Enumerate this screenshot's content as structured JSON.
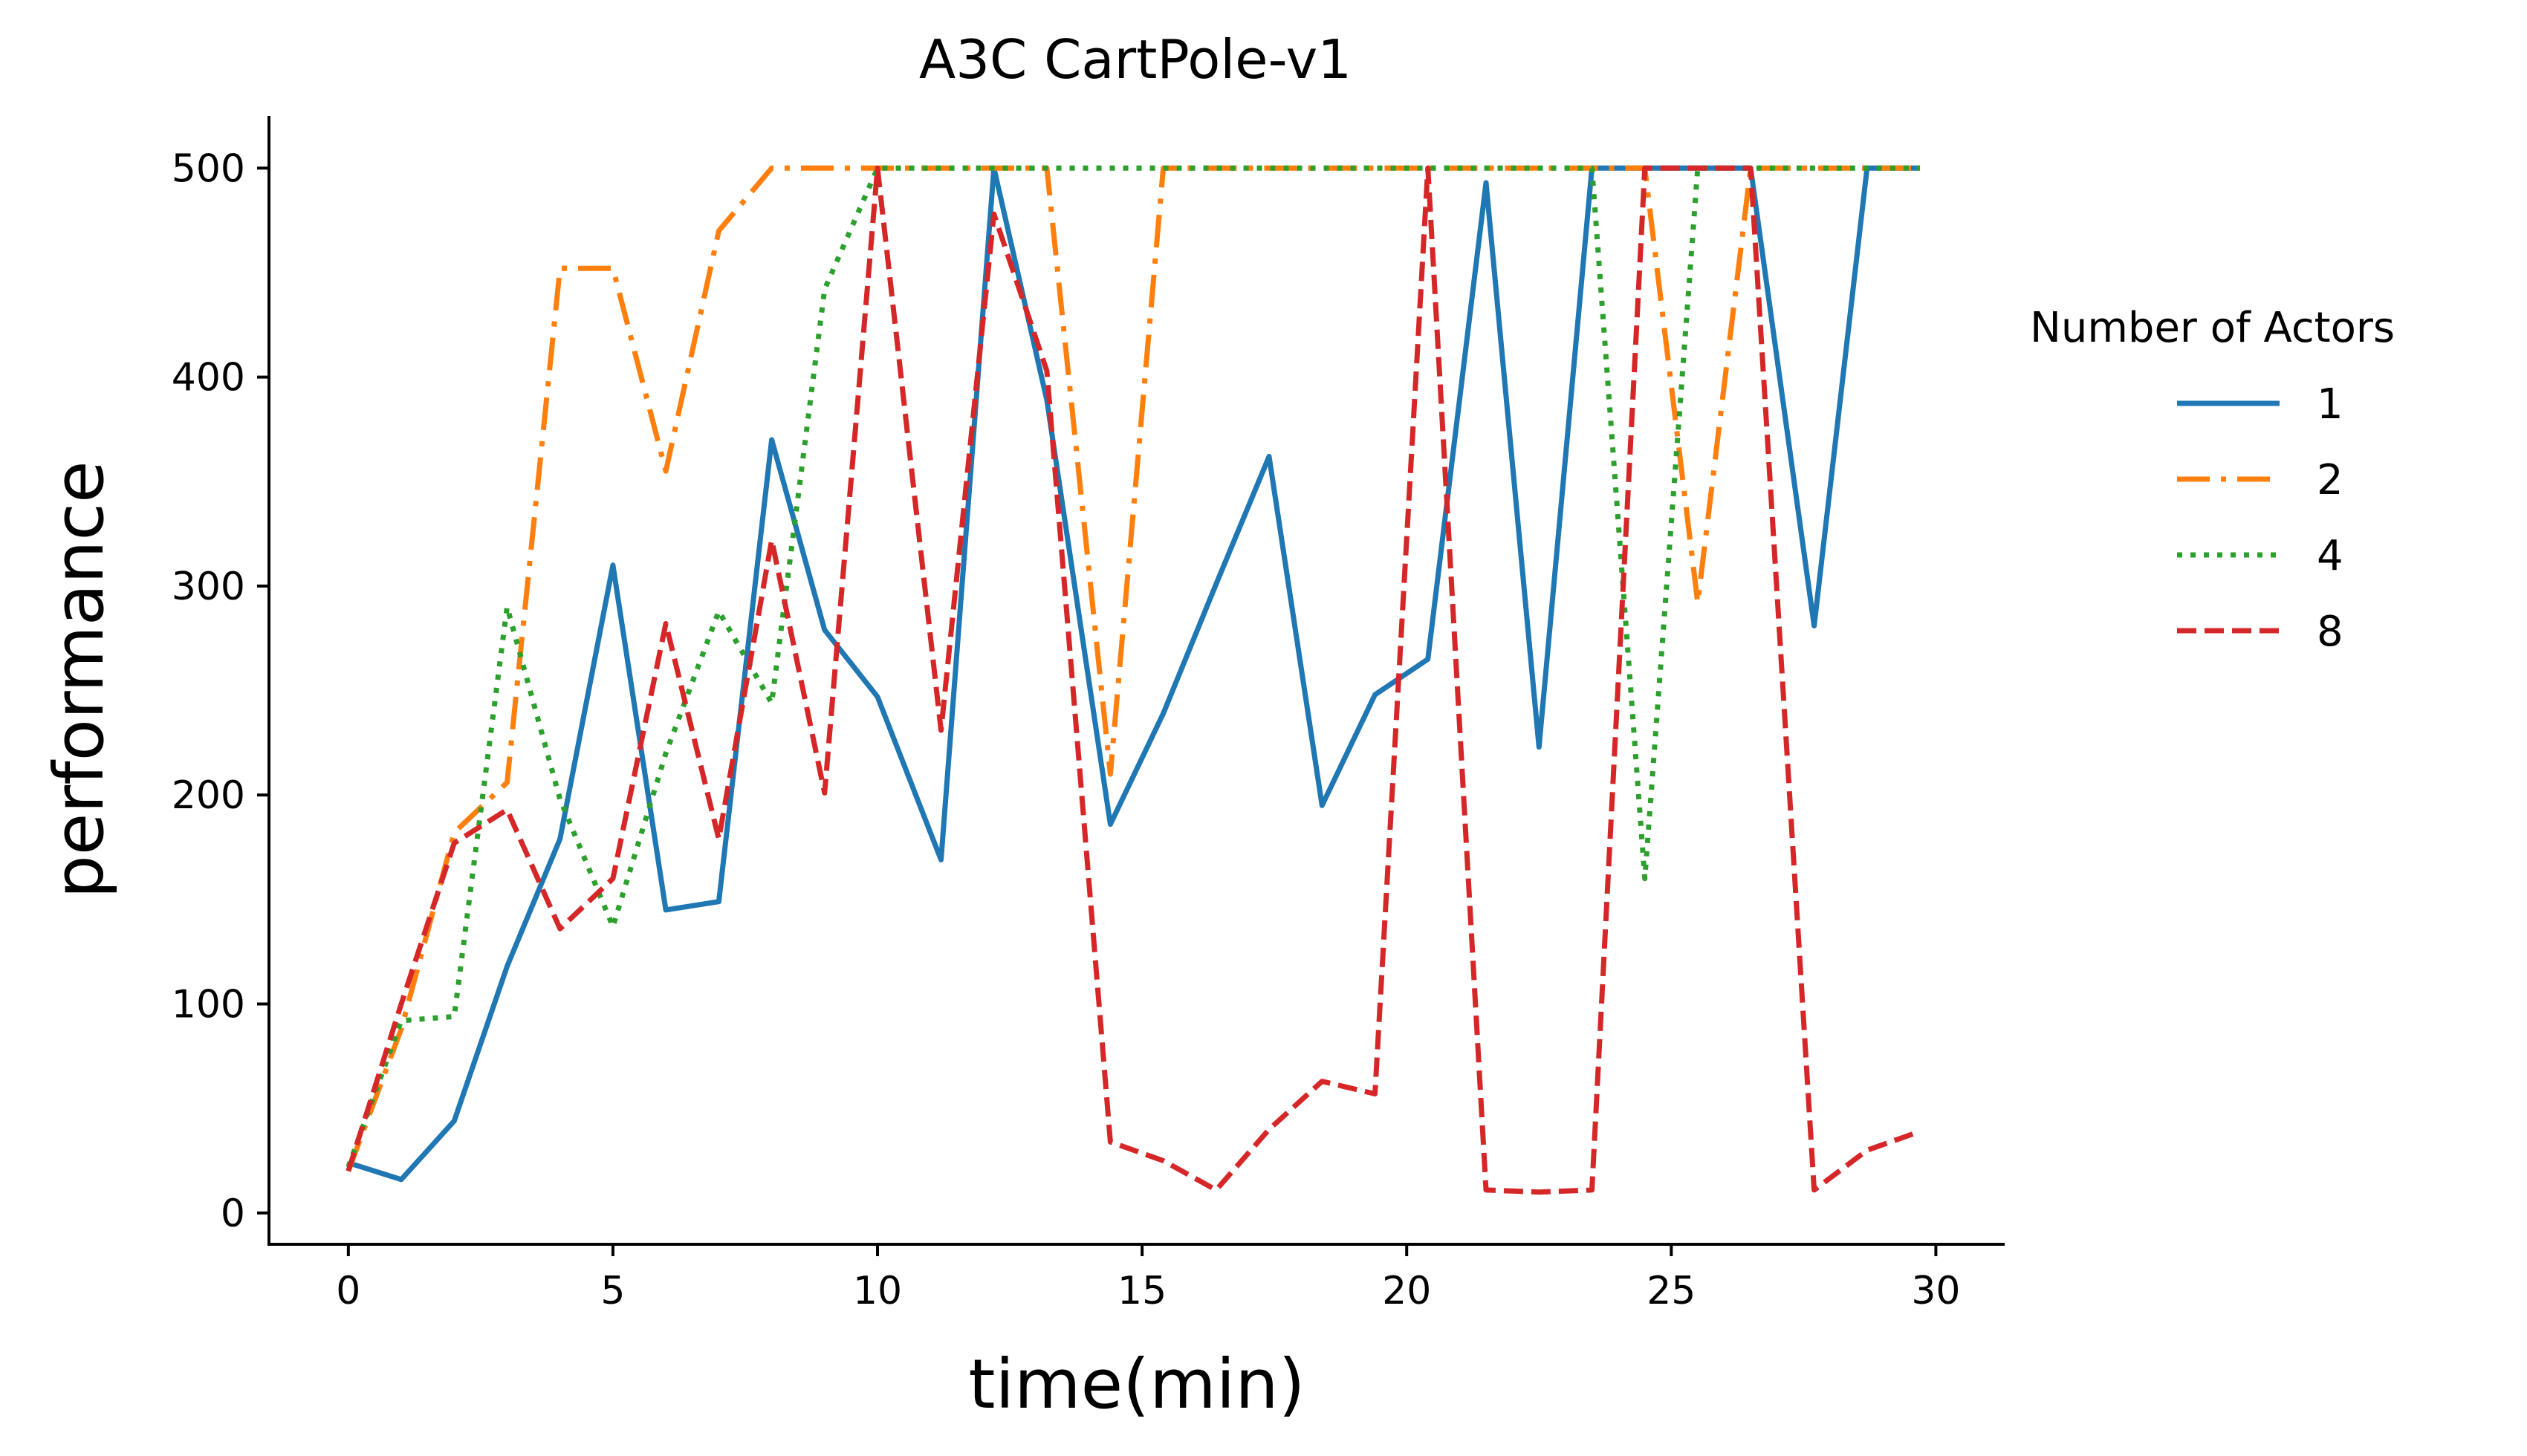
{
  "chart_data": {
    "type": "line",
    "title": "A3C CartPole-v1",
    "xlabel": "time(min)",
    "ylabel": "performance",
    "xlim": [
      -1.5,
      31.3
    ],
    "ylim": [
      -15,
      525
    ],
    "xticks": [
      0,
      5,
      10,
      15,
      20,
      25,
      30
    ],
    "yticks": [
      0,
      100,
      200,
      300,
      400,
      500
    ],
    "grid": false,
    "legend": {
      "title": "Number of Actors",
      "placement": "right"
    },
    "series": [
      {
        "name": "1",
        "color": "#1f77b4",
        "dash": "solid",
        "x": [
          0,
          1,
          2,
          3,
          4,
          5,
          6,
          7,
          8,
          9,
          10,
          11.2,
          12.2,
          13.2,
          14.4,
          15.4,
          16.4,
          17.4,
          18.4,
          19.4,
          20.4,
          21.5,
          22.5,
          23.5,
          24.5,
          25.5,
          26.5,
          27.7,
          28.7,
          29.7
        ],
        "y": [
          24,
          16,
          44,
          118,
          179,
          310,
          145,
          149,
          370,
          279,
          247,
          169,
          500,
          389,
          186,
          239,
          301,
          362,
          195,
          248,
          265,
          493,
          223,
          500,
          500,
          500,
          500,
          281,
          500,
          500
        ]
      },
      {
        "name": "2",
        "color": "#ff7f0e",
        "dash": "dashdot",
        "x": [
          0,
          1,
          2,
          3,
          4,
          5,
          6,
          7,
          8,
          9,
          10,
          11.2,
          12.2,
          13.2,
          14.4,
          15.4,
          16.4,
          17.4,
          18.4,
          19.4,
          20.4,
          21.5,
          22.5,
          23.5,
          24.5,
          25.5,
          26.5,
          27.7,
          28.7,
          29.7
        ],
        "y": [
          20,
          88,
          182,
          206,
          452,
          452,
          355,
          470,
          500,
          500,
          500,
          500,
          500,
          500,
          210,
          500,
          500,
          500,
          500,
          500,
          500,
          500,
          500,
          500,
          500,
          292,
          500,
          500,
          500,
          500
        ]
      },
      {
        "name": "4",
        "color": "#2ca02c",
        "dash": "dotted",
        "x": [
          0,
          1,
          2,
          3,
          4,
          5,
          6,
          7,
          8,
          9,
          10,
          11.2,
          12.2,
          13.2,
          14.4,
          15.4,
          16.4,
          17.4,
          18.4,
          19.4,
          20.4,
          21.5,
          22.5,
          23.5,
          24.5,
          25.5,
          26.5,
          27.7,
          28.7,
          29.7
        ],
        "y": [
          22,
          92,
          94,
          290,
          198,
          137,
          220,
          288,
          244,
          442,
          500,
          500,
          500,
          500,
          500,
          500,
          500,
          500,
          500,
          500,
          500,
          500,
          500,
          500,
          160,
          500,
          500,
          500,
          500,
          500
        ]
      },
      {
        "name": "8",
        "color": "#d62728",
        "dash": "dashed",
        "x": [
          0,
          1,
          2,
          3,
          4,
          5,
          6,
          7,
          8,
          9,
          10,
          11.2,
          12.2,
          13.2,
          14.4,
          15.4,
          16.4,
          17.4,
          18.4,
          19.4,
          20.4,
          21.5,
          22.5,
          23.5,
          24.5,
          25.5,
          26.5,
          27.7,
          28.7,
          29.7
        ],
        "y": [
          20,
          100,
          177,
          193,
          136,
          160,
          282,
          179,
          322,
          201,
          500,
          231,
          478,
          403,
          34,
          25,
          11,
          40,
          63,
          57,
          500,
          11,
          10,
          11,
          500,
          500,
          500,
          11,
          30,
          39
        ]
      }
    ]
  }
}
